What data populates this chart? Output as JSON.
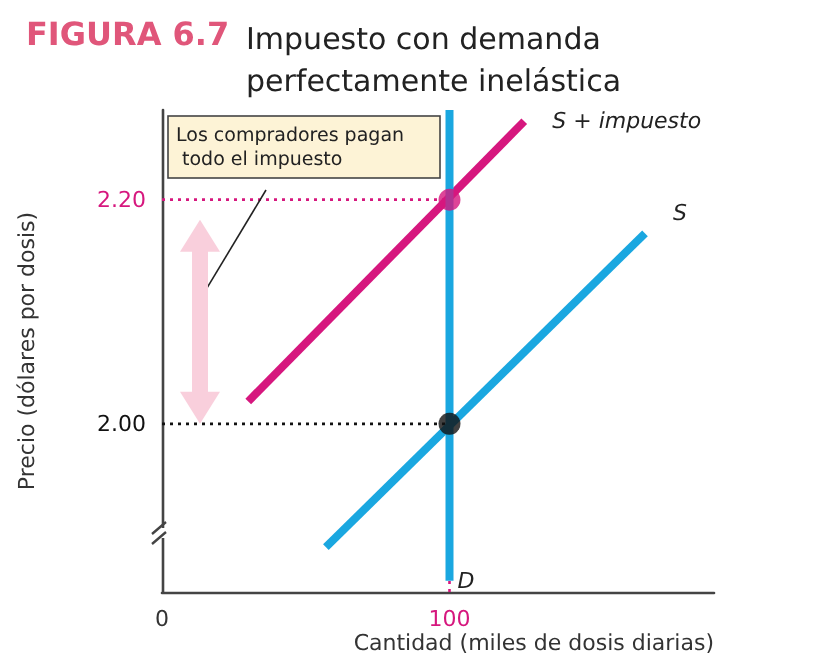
{
  "chart_data": {
    "type": "line",
    "title": "FIGURA 6.7",
    "subtitle": "Impuesto con demanda perfectamente inelástica",
    "xlabel": "Cantidad (miles de dosis diarias)",
    "ylabel": "Precio (dólares por dosis)",
    "annotations": [
      "Los compradores pagan todo el impuesto"
    ],
    "xlim": [
      0,
      192
    ],
    "xticks": [
      0,
      100
    ],
    "ylim": [
      1.85,
      2.28
    ],
    "yticks": [
      {
        "value": 2.0,
        "label": "2.00"
      },
      {
        "value": 2.2,
        "label": "2.20"
      }
    ],
    "grid": false,
    "legend": false,
    "marker": "none",
    "line_style": "solid",
    "series": [
      {
        "name": "S + impuesto",
        "color": "#d6177e",
        "x": [
          30,
          126
        ],
        "values": [
          2.02,
          2.27
        ]
      },
      {
        "name": "S",
        "color": "#1aa7e0",
        "x": [
          57,
          168
        ],
        "values": [
          1.89,
          2.17
        ]
      },
      {
        "name": "D",
        "color": "#1aa7e0",
        "x": [
          100,
          100
        ],
        "values": [
          2.28,
          1.86
        ]
      },
      {
        "type": "scatter",
        "x": [
          100,
          100
        ],
        "values": [
          2.2,
          2.0
        ],
        "colors": [
          "#d6177e",
          "#111111"
        ],
        "marker": "circle"
      }
    ],
    "ref_lines": [
      {
        "axis": "y",
        "value": 2.2,
        "color": "#d6177e",
        "line_style": "dotted"
      },
      {
        "axis": "y",
        "value": 2.0,
        "color": "#111111",
        "line_style": "dotted"
      },
      {
        "axis": "x",
        "value": 100,
        "color": "#d6177e",
        "line_style": "dotted"
      }
    ]
  }
}
